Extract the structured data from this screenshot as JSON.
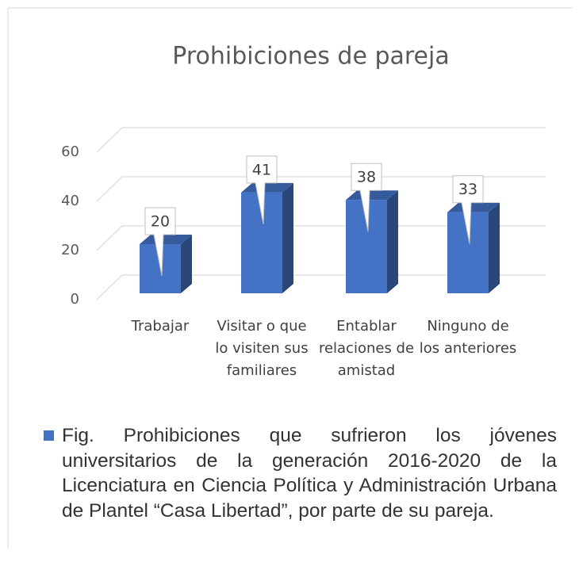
{
  "chart_data": {
    "type": "bar",
    "title": "Prohibiciones de pareja",
    "categories": [
      "Trabajar",
      "Visitar o que lo visiten sus familiares",
      "Entablar relaciones de amistad",
      "Ninguno de los anteriores"
    ],
    "series": [
      {
        "name": "Fig. Prohibiciones que sufrieron los jóvenes universitarios de la generación 2016-2020 de la Licenciatura en Ciencia Política y Administración Urbana de Plantel “Casa Libertad”, por parte de su pareja.",
        "color": "#4472c4",
        "values": [
          20,
          41,
          38,
          33
        ]
      }
    ],
    "ylim": [
      0,
      60
    ],
    "yticks": [
      0,
      20,
      40,
      60
    ],
    "grid": true,
    "legend": "bottom"
  }
}
